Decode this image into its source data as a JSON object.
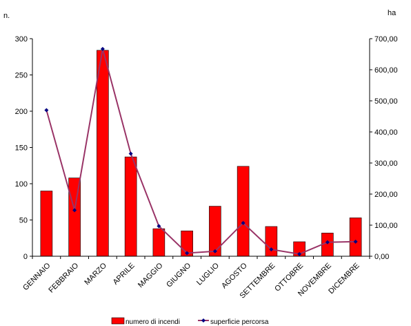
{
  "chart_data": {
    "type": "bar+line",
    "title": "",
    "left_axis": {
      "unit_label": "n.",
      "ylim": [
        0,
        300
      ],
      "ticks": [
        "0",
        "50",
        "100",
        "150",
        "200",
        "250",
        "300"
      ]
    },
    "right_axis": {
      "unit_label": "ha",
      "ylim": [
        0,
        700
      ],
      "ticks": [
        "0,00",
        "100,00",
        "200,00",
        "300,00",
        "400,00",
        "500,00",
        "600,00",
        "700,00"
      ]
    },
    "categories": [
      "GENNAIO",
      "FEBBRAIO",
      "MARZO",
      "APRILE",
      "MAGGIO",
      "GIUGNO",
      "LUGLIO",
      "AGOSTO",
      "SETTEMBRE",
      "OTTOBRE",
      "NOVEMBRE",
      "DICEMBRE"
    ],
    "series": [
      {
        "name": "numero di incendi",
        "type": "bar",
        "axis": "left",
        "color": "#ff0000",
        "values": [
          90,
          108,
          284,
          137,
          38,
          35,
          69,
          124,
          41,
          20,
          32,
          53
        ]
      },
      {
        "name": "superficie percorsa",
        "type": "line",
        "axis": "right",
        "color": "#993366",
        "marker_color": "#000080",
        "values": [
          470,
          148,
          667,
          330,
          97,
          10,
          16,
          107,
          22,
          7,
          45,
          47
        ]
      }
    ],
    "legend_position": "bottom",
    "grid": false
  }
}
